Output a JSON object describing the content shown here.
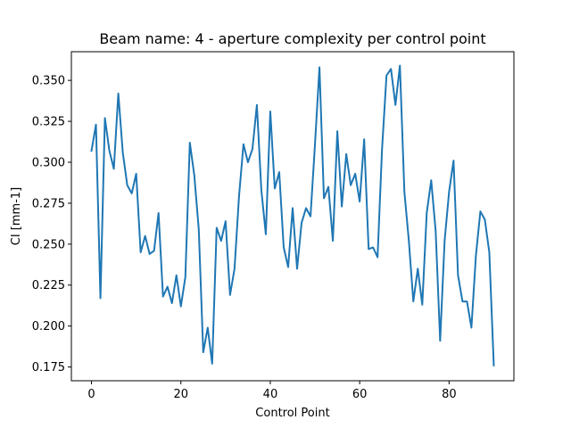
{
  "chart_data": {
    "type": "line",
    "title": "Beam name: 4  - aperture complexity per control point",
    "xlabel": "Control Point",
    "ylabel": "CI [mm-1]",
    "xlim": [
      -4.5,
      94.5
    ],
    "ylim": [
      0.1666,
      0.3675
    ],
    "xticks": [
      0,
      20,
      40,
      60,
      80
    ],
    "yticks": [
      0.175,
      0.2,
      0.225,
      0.25,
      0.275,
      0.3,
      0.325,
      0.35
    ],
    "ytick_labels": [
      "0.175",
      "0.200",
      "0.225",
      "0.250",
      "0.275",
      "0.300",
      "0.325",
      "0.350"
    ],
    "grid": false,
    "color": "#1f77b4",
    "series": [
      {
        "x": [
          0,
          1,
          2,
          3,
          4,
          5,
          6,
          7,
          8,
          9,
          10,
          11,
          12,
          13,
          14,
          15,
          16,
          17,
          18,
          19,
          20,
          21,
          22,
          23,
          24,
          25,
          26,
          27,
          28,
          29,
          30,
          31,
          32,
          33,
          34,
          35,
          36,
          37,
          38,
          39,
          40,
          41,
          42,
          43,
          44,
          45,
          46,
          47,
          48,
          49,
          50,
          51,
          52,
          53,
          54,
          55,
          56,
          57,
          58,
          59,
          60,
          61,
          62,
          63,
          64,
          65,
          66,
          67,
          68,
          69,
          70,
          71,
          72,
          73,
          74,
          75,
          76,
          77,
          78,
          79,
          80,
          81,
          82,
          83,
          84,
          85,
          86,
          87,
          88,
          89,
          90
        ],
        "values": [
          0.307,
          0.323,
          0.217,
          0.327,
          0.307,
          0.296,
          0.342,
          0.306,
          0.286,
          0.281,
          0.293,
          0.245,
          0.255,
          0.244,
          0.246,
          0.269,
          0.218,
          0.224,
          0.214,
          0.231,
          0.212,
          0.23,
          0.312,
          0.292,
          0.259,
          0.184,
          0.199,
          0.177,
          0.26,
          0.252,
          0.264,
          0.219,
          0.235,
          0.279,
          0.311,
          0.3,
          0.308,
          0.335,
          0.283,
          0.256,
          0.331,
          0.284,
          0.294,
          0.248,
          0.236,
          0.272,
          0.235,
          0.263,
          0.272,
          0.267,
          0.311,
          0.358,
          0.278,
          0.285,
          0.252,
          0.319,
          0.273,
          0.305,
          0.286,
          0.293,
          0.276,
          0.314,
          0.247,
          0.248,
          0.242,
          0.308,
          0.353,
          0.357,
          0.335,
          0.359,
          0.282,
          0.252,
          0.215,
          0.235,
          0.213,
          0.269,
          0.289,
          0.258,
          0.191,
          0.252,
          0.282,
          0.301,
          0.231,
          0.215,
          0.215,
          0.199,
          0.243,
          0.27,
          0.265,
          0.245,
          0.176
        ]
      }
    ]
  }
}
